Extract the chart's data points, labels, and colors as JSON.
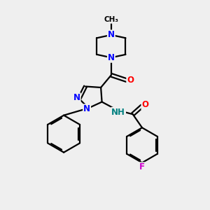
{
  "bg_color": "#efefef",
  "bond_color": "#000000",
  "bond_width": 1.6,
  "atom_colors": {
    "N": "#0000ff",
    "O": "#ff0000",
    "F": "#cc00cc",
    "C": "#000000",
    "H": "#008080"
  },
  "font_size": 8.5,
  "figsize": [
    3.0,
    3.0
  ],
  "dpi": 100
}
